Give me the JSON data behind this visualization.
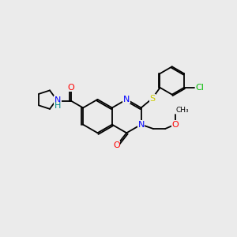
{
  "bg_color": "#ebebeb",
  "bond_color": "#000000",
  "atom_colors": {
    "N": "#0000ff",
    "O": "#ff0000",
    "S": "#cccc00",
    "Cl": "#00bb00",
    "H": "#008888",
    "C": "#000000"
  },
  "lw": 1.3,
  "fs": 8.0,
  "ring_r": 0.72
}
